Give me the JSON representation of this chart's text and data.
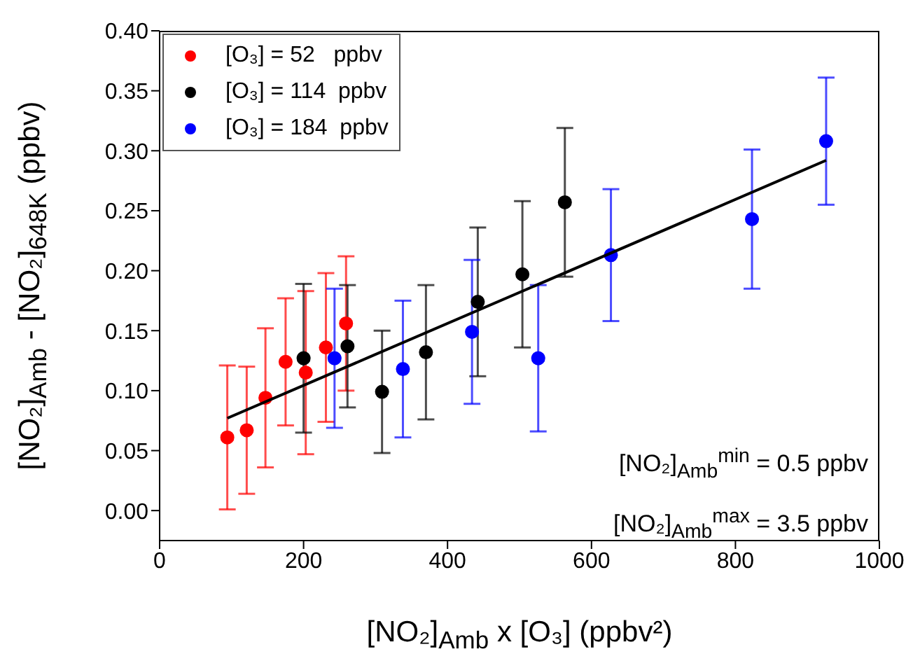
{
  "chart_data": {
    "type": "scatter",
    "xlabel": "[NO₂]$_{Amb}$ x [O₃] (ppbv²)",
    "ylabel": "[NO₂]$_{Amb}$ - [NO₂]$_{648K}$ (ppbv)",
    "xlim": [
      0,
      1000
    ],
    "xticks": [
      0,
      200,
      400,
      600,
      800,
      1000
    ],
    "ylim": [
      -0.025,
      0.4
    ],
    "yticks": [
      {
        "value": 0,
        "label": "0.00"
      },
      0.05,
      {
        "value": 0.1,
        "label": "0.10"
      },
      0.15,
      {
        "value": 0.2,
        "label": "0.20"
      },
      0.25,
      {
        "value": 0.3,
        "label": "0.30"
      },
      0.35,
      {
        "value": 0.4,
        "label": "0.40"
      }
    ],
    "grid": false,
    "legend": "top left",
    "marker": "circle",
    "annotations": [
      "[NO₂]$_{Amb}$$^{min}$ = 0.5 ppbv",
      "[NO₂]$_{Amb}$$^{max}$ = 3.5 ppbv"
    ],
    "series": [
      {
        "name": "[O₃] = 52   ppbv",
        "color": "#ff0000",
        "x": [
          94,
          121,
          147,
          175,
          203,
          231,
          259
        ],
        "values": [
          0.061,
          0.067,
          0.094,
          0.124,
          0.115,
          0.136,
          0.156
        ],
        "errors": [
          0.06,
          0.053,
          0.058,
          0.053,
          0.068,
          0.062,
          0.056
        ]
      },
      {
        "name": "[O₃] = 114  ppbv",
        "color": "#000000",
        "x": [
          200,
          261,
          309,
          370,
          442,
          504,
          563
        ],
        "values": [
          0.127,
          0.137,
          0.099,
          0.132,
          0.174,
          0.197,
          0.257
        ],
        "errors": [
          0.062,
          0.051,
          0.051,
          0.056,
          0.062,
          0.061,
          0.062
        ]
      },
      {
        "name": "[O₃] = 184  ppbv",
        "color": "#0000ff",
        "x": [
          243,
          338,
          434,
          526,
          627,
          823,
          926
        ],
        "values": [
          0.127,
          0.118,
          0.149,
          0.127,
          0.213,
          0.243,
          0.308
        ],
        "errors": [
          0.058,
          0.057,
          0.06,
          0.061,
          0.055,
          0.058,
          0.053
        ]
      },
      {
        "type": "line",
        "marker": "none",
        "color": "#000000",
        "x": [
          94,
          926
        ],
        "values": [
          0.077,
          0.292
        ]
      }
    ]
  }
}
